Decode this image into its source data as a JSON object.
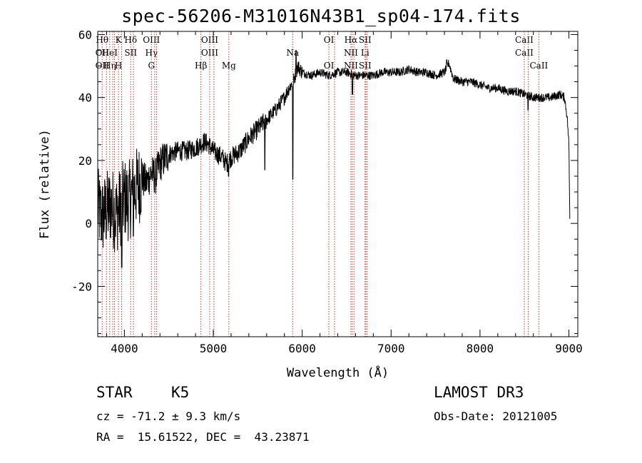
{
  "chart_data": {
    "type": "line",
    "title": "spec-56206-M31016N43B1_sp04-174.fits",
    "xlabel": "Wavelength (Å)",
    "ylabel": "Flux (relative)",
    "xlim": [
      3700,
      9100
    ],
    "ylim": [
      -36,
      61
    ],
    "xticks": [
      4000,
      5000,
      6000,
      7000,
      8000,
      9000
    ],
    "yticks": [
      -20,
      0,
      20,
      40,
      60
    ],
    "series": [
      {
        "name": "flux",
        "color": "#000000",
        "anchors": [
          [
            3700,
            5
          ],
          [
            3750,
            2
          ],
          [
            3800,
            4
          ],
          [
            3850,
            6
          ],
          [
            3900,
            3
          ],
          [
            3950,
            5
          ],
          [
            4000,
            8
          ],
          [
            4050,
            7
          ],
          [
            4100,
            10
          ],
          [
            4150,
            12
          ],
          [
            4200,
            14
          ],
          [
            4250,
            13
          ],
          [
            4300,
            16
          ],
          [
            4350,
            15
          ],
          [
            4400,
            19
          ],
          [
            4500,
            22
          ],
          [
            4600,
            23
          ],
          [
            4700,
            23
          ],
          [
            4800,
            24
          ],
          [
            4900,
            26
          ],
          [
            4950,
            25
          ],
          [
            5000,
            23
          ],
          [
            5100,
            21
          ],
          [
            5150,
            19
          ],
          [
            5200,
            21
          ],
          [
            5300,
            23
          ],
          [
            5400,
            27
          ],
          [
            5500,
            30
          ],
          [
            5600,
            33
          ],
          [
            5700,
            36
          ],
          [
            5800,
            40
          ],
          [
            5850,
            43
          ],
          [
            5900,
            45
          ],
          [
            5950,
            50
          ],
          [
            6000,
            48
          ],
          [
            6100,
            47
          ],
          [
            6200,
            48
          ],
          [
            6300,
            47
          ],
          [
            6400,
            48
          ],
          [
            6500,
            48
          ],
          [
            6600,
            47
          ],
          [
            6700,
            47
          ],
          [
            6800,
            47
          ],
          [
            6900,
            48
          ],
          [
            7000,
            48
          ],
          [
            7100,
            48
          ],
          [
            7200,
            49
          ],
          [
            7300,
            48
          ],
          [
            7400,
            48
          ],
          [
            7500,
            47
          ],
          [
            7600,
            48
          ],
          [
            7650,
            51
          ],
          [
            7700,
            46
          ],
          [
            7800,
            45
          ],
          [
            7900,
            45
          ],
          [
            8000,
            44
          ],
          [
            8100,
            43
          ],
          [
            8200,
            43
          ],
          [
            8300,
            42
          ],
          [
            8400,
            42
          ],
          [
            8500,
            41
          ],
          [
            8600,
            40
          ],
          [
            8700,
            40
          ],
          [
            8800,
            40
          ],
          [
            8900,
            41
          ],
          [
            8950,
            40
          ],
          [
            8980,
            34
          ],
          [
            9000,
            25
          ],
          [
            9010,
            2
          ]
        ],
        "features": [
          [
            3970,
            -14
          ],
          [
            4100,
            -4
          ],
          [
            5172,
            15
          ],
          [
            5580,
            17
          ],
          [
            5895,
            14
          ],
          [
            5930,
            55
          ],
          [
            6565,
            41
          ],
          [
            7625,
            52
          ],
          [
            8540,
            36
          ]
        ]
      }
    ],
    "lines": [
      {
        "w": 3750,
        "labels": [
          "Hθ",
          "OII",
          "OII"
        ]
      },
      {
        "w": 3798,
        "labels": [
          "",
          "",
          ""
        ]
      },
      {
        "w": 3835,
        "labels": [
          "",
          "HeI",
          "Hη"
        ]
      },
      {
        "w": 3869,
        "labels": [
          "",
          "",
          ""
        ]
      },
      {
        "w": 3889,
        "labels": [
          "",
          "",
          ""
        ]
      },
      {
        "w": 3934,
        "labels": [
          "K",
          "",
          "H"
        ]
      },
      {
        "w": 3969,
        "labels": [
          "",
          "",
          ""
        ]
      },
      {
        "w": 4071,
        "labels": [
          "Hδ",
          "SII",
          ""
        ]
      },
      {
        "w": 4102,
        "labels": [
          "",
          "",
          ""
        ]
      },
      {
        "w": 4304,
        "labels": [
          "OIII",
          "Hγ",
          "G"
        ]
      },
      {
        "w": 4341,
        "labels": [
          "",
          "",
          ""
        ]
      },
      {
        "w": 4363,
        "labels": [
          "",
          "",
          ""
        ]
      },
      {
        "w": 4861,
        "labels": [
          "",
          "",
          "Hβ"
        ]
      },
      {
        "w": 4959,
        "labels": [
          "OIII",
          "OIII",
          ""
        ]
      },
      {
        "w": 5007,
        "labels": [
          "",
          "",
          ""
        ]
      },
      {
        "w": 5175,
        "labels": [
          "",
          "",
          "Mg"
        ]
      },
      {
        "w": 5893,
        "labels": [
          "",
          "Na",
          ""
        ]
      },
      {
        "w": 6300,
        "labels": [
          "OI",
          "",
          "OI"
        ]
      },
      {
        "w": 6364,
        "labels": [
          "",
          "",
          ""
        ]
      },
      {
        "w": 6548,
        "labels": [
          "Hα",
          "NII",
          "NII"
        ]
      },
      {
        "w": 6563,
        "labels": [
          "",
          "",
          ""
        ]
      },
      {
        "w": 6583,
        "labels": [
          "",
          "",
          ""
        ]
      },
      {
        "w": 6707,
        "labels": [
          "SII",
          "Li",
          "SII"
        ]
      },
      {
        "w": 6716,
        "labels": [
          "",
          "",
          ""
        ]
      },
      {
        "w": 6731,
        "labels": [
          "",
          "",
          ""
        ]
      },
      {
        "w": 8498,
        "labels": [
          "CaII",
          "CaII",
          ""
        ]
      },
      {
        "w": 8542,
        "labels": [
          "",
          "",
          ""
        ]
      },
      {
        "w": 8662,
        "labels": [
          "",
          "",
          "CaII"
        ]
      }
    ]
  },
  "info": {
    "class_label": "STAR",
    "subclass": "K5",
    "cz": "cz = -71.2 ± 9.3 km/s",
    "radec": "RA =  15.61522, DEC =  43.23871",
    "survey": "LAMOST DR3",
    "obs_date": "Obs-Date: 20121005"
  },
  "colors": {
    "spectrum": "#000000",
    "lines": "#c0392b",
    "axes": "#000000"
  }
}
